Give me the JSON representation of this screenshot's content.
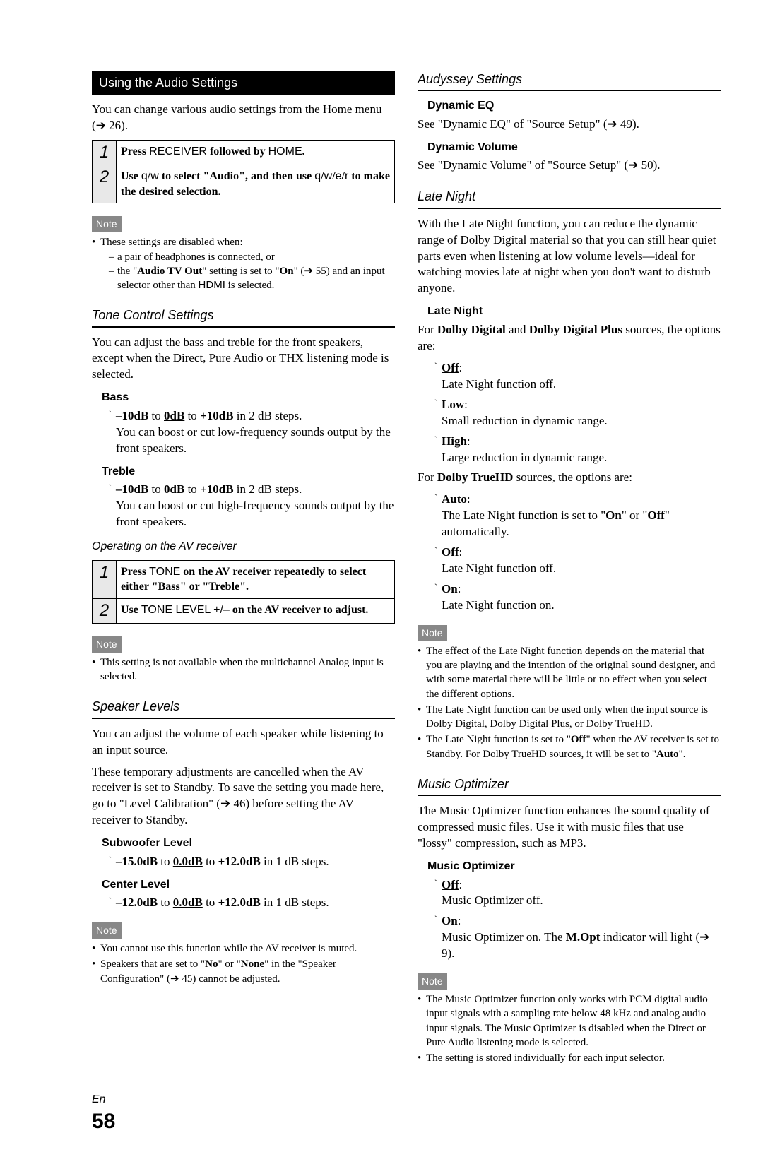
{
  "left": {
    "heading": "Using the Audio Settings",
    "intro": "You can change various audio settings from the Home menu (➔ 26).",
    "steps1": [
      {
        "num": "1",
        "html": "<b>Press <span class='sans'>RECEIVER</span> followed by <span class='sans'>HOME</span>.</b>"
      },
      {
        "num": "2",
        "html": "<b>Use <span class='sans'>q</span>/<span class='sans'>w</span> to select \"Audio\", and then use <span class='sans'>q</span>/<span class='sans'>w</span>/<span class='sans'>e</span>/<span class='sans'>r</span> to make the desired selection.</b>"
      }
    ],
    "note1": [
      "These settings are disabled when:",
      [
        "a pair of headphones is connected, or",
        "the \"<b>Audio TV Out</b>\" setting is set to \"<b>On</b>\" (➔ 55) and an input selector other than <span class='sans-inline'>HDMI</span> is selected."
      ]
    ],
    "tone_title": "Tone Control Settings",
    "tone_intro": "You can adjust the bass and treble for the front speakers, except when the Direct, Pure Audio or THX listening mode is selected.",
    "bass_label": "Bass",
    "bass_range": "<b>–10dB</b> to <b class='underline'>0dB</b> to <b>+10dB</b> in 2 dB steps.",
    "bass_desc": "You can boost or cut low-frequency sounds output by the front speakers.",
    "treble_label": "Treble",
    "treble_range": "<b>–10dB</b> to <b class='underline'>0dB</b> to <b>+10dB</b> in 2 dB steps.",
    "treble_desc": "You can boost or cut high-frequency sounds output by the front speakers.",
    "operating": "Operating on the AV receiver",
    "steps2": [
      {
        "num": "1",
        "html": "<b>Press <span class='sans'>TONE</span> on the AV receiver repeatedly to select either \"Bass\" or \"Treble\".</b>"
      },
      {
        "num": "2",
        "html": "<b>Use <span class='sans'>TONE LEVEL +/–</span> on the AV receiver to adjust.</b>"
      }
    ],
    "note2": [
      "This setting is not available when the multichannel Analog input is selected."
    ],
    "spk_title": "Speaker Levels",
    "spk_p1": "You can adjust the volume of each speaker while listening to an input source.",
    "spk_p2": "These temporary adjustments are cancelled when the AV receiver is set to Standby. To save the setting you made here, go to \"Level Calibration\" (➔ 46) before setting the AV receiver to Standby.",
    "sub_label": "Subwoofer Level",
    "sub_range": "<b>–15.0dB</b> to <b class='underline'>0.0dB</b> to <b>+12.0dB</b> in 1 dB steps.",
    "center_label": "Center Level",
    "center_range": "<b>–12.0dB</b> to <b class='underline'>0.0dB</b> to <b>+12.0dB</b> in 1 dB steps.",
    "note3": [
      "You cannot use this function while the AV receiver is muted.",
      "Speakers that are set to \"<b>No</b>\" or \"<b>None</b>\" in the \"Speaker Configuration\" (➔ 45) cannot be adjusted."
    ]
  },
  "right": {
    "aud_title": "Audyssey Settings",
    "dyneq_label": "Dynamic EQ",
    "dyneq_text": "See \"Dynamic EQ\" of \"Source Setup\" (➔ 49).",
    "dynvol_label": "Dynamic Volume",
    "dynvol_text": "See \"Dynamic Volume\" of \"Source Setup\" (➔ 50).",
    "ln_title": "Late Night",
    "ln_intro": "With the Late Night function, you can reduce the dynamic range of Dolby Digital material so that you can still hear quiet parts even when listening at low volume levels—ideal for watching movies late at night when you don't want to disturb anyone.",
    "ln_sub": "Late Night",
    "ln_dd_intro": "For <b>Dolby Digital</b> and <b>Dolby Digital Plus</b> sources, the options are:",
    "ln_dd": [
      {
        "label": "Off",
        "underline": true,
        "desc": "Late Night function off."
      },
      {
        "label": "Low",
        "underline": false,
        "desc": "Small reduction in dynamic range."
      },
      {
        "label": "High",
        "underline": false,
        "desc": "Large reduction in dynamic range."
      }
    ],
    "ln_thd_intro": "For <b>Dolby TrueHD</b> sources, the options are:",
    "ln_thd": [
      {
        "label": "Auto",
        "underline": true,
        "desc": "The Late Night function is set to \"<b>On</b>\" or \"<b>Off</b>\" automatically."
      },
      {
        "label": "Off",
        "underline": false,
        "desc": "Late Night function off."
      },
      {
        "label": "On",
        "underline": false,
        "desc": "Late Night function on."
      }
    ],
    "ln_note": [
      "The effect of the Late Night function depends on the material that you are playing and the intention of the original sound designer, and with some material there will be little or no effect when you select the different options.",
      "The Late Night function can be used only when the input source is Dolby Digital, Dolby Digital Plus, or Dolby TrueHD.",
      "The Late Night function is set to \"<b>Off</b>\" when the AV receiver is set to Standby. For Dolby TrueHD sources, it will be set to \"<b>Auto</b>\"."
    ],
    "mo_title": "Music Optimizer",
    "mo_intro": "The Music Optimizer function enhances the sound quality of compressed music files. Use it with music files that use \"lossy\" compression, such as MP3.",
    "mo_sub": "Music Optimizer",
    "mo_opts": [
      {
        "label": "Off",
        "underline": true,
        "desc": "Music Optimizer off."
      },
      {
        "label": "On",
        "underline": false,
        "desc": "Music Optimizer on. The <b>M.Opt</b> indicator will light (➔ 9)."
      }
    ],
    "mo_note": [
      "The Music Optimizer function only works with PCM digital audio input signals with a sampling rate below 48 kHz and analog audio input signals. The Music Optimizer is disabled when the Direct or Pure Audio listening mode is selected.",
      "The setting is stored individually for each input selector."
    ]
  },
  "footer": {
    "lang": "En",
    "page": "58"
  }
}
